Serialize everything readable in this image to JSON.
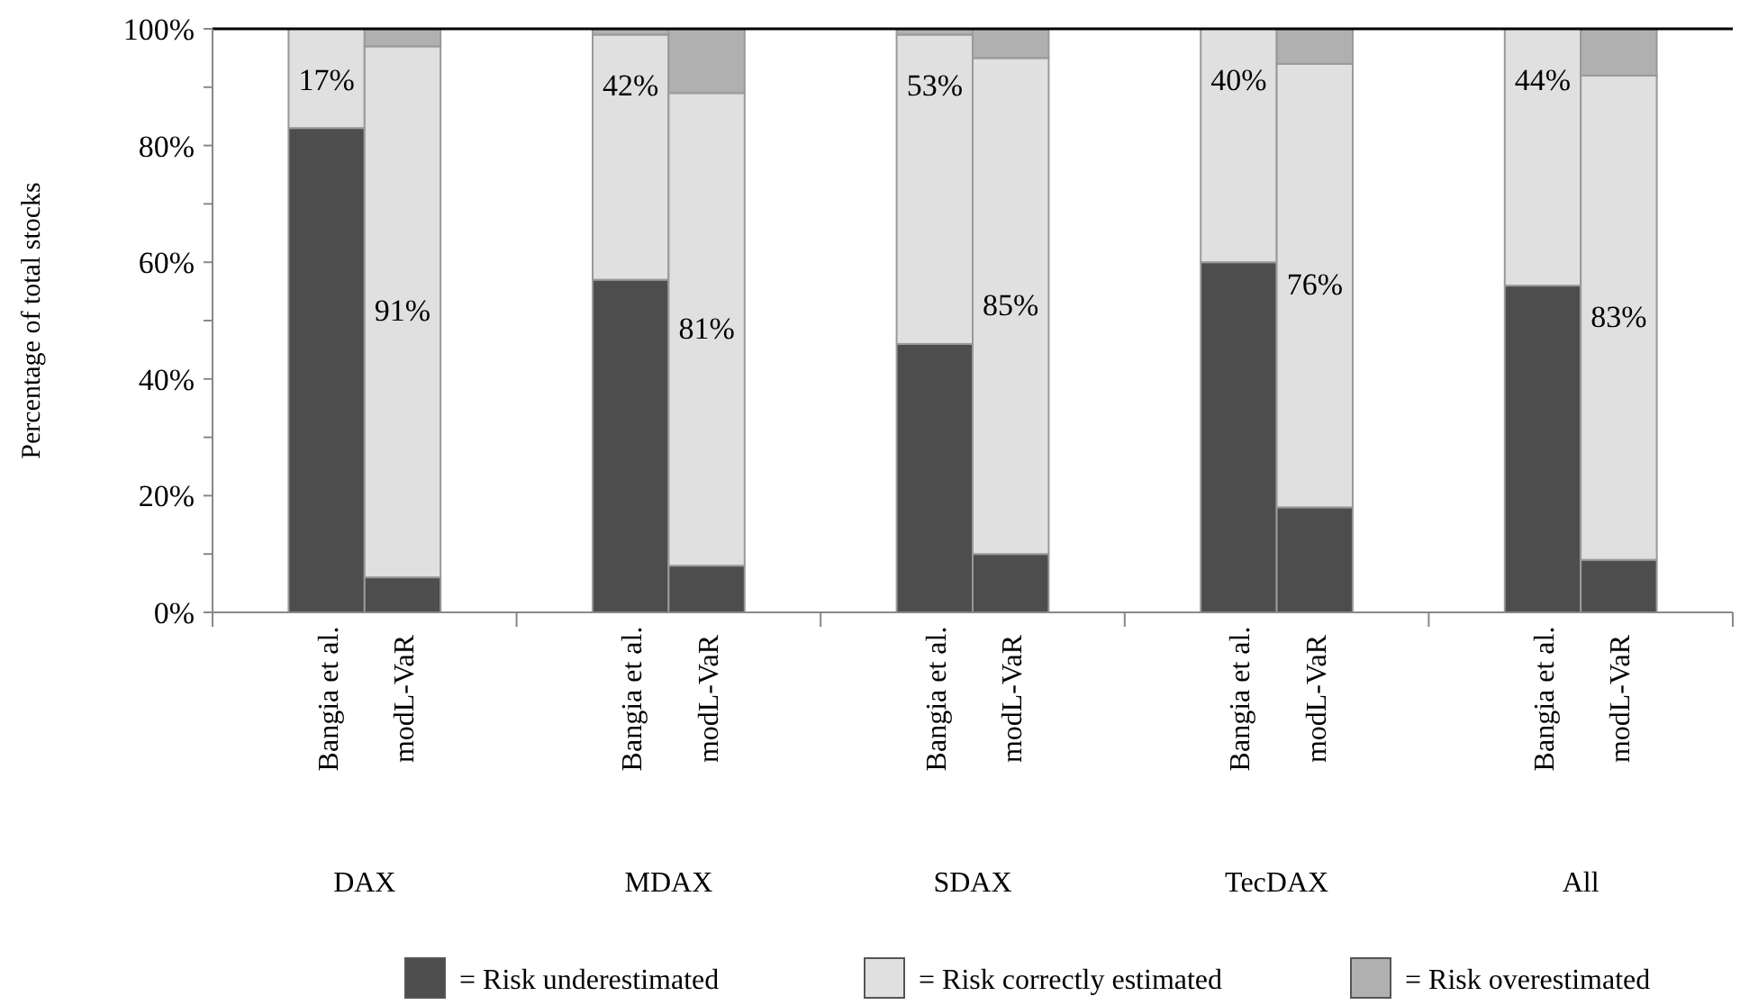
{
  "chart_data": {
    "type": "bar",
    "stacked": true,
    "ylabel": "Percentage of total stocks",
    "categories": [
      "Bangia et al.",
      "modL-VaR",
      "Bangia et al.",
      "modL-VaR",
      "Bangia et al.",
      "modL-VaR",
      "Bangia et al.",
      "modL-VaR",
      "Bangia et al.",
      "modL-VaR"
    ],
    "annotations": [
      "DAX",
      "MDAX",
      "SDAX",
      "TecDAX",
      "All"
    ],
    "series": [
      {
        "name": "= Risk underestimated",
        "color": "#4d4d4d",
        "values": [
          83,
          6,
          57,
          8,
          46,
          10,
          60,
          18,
          56,
          9
        ]
      },
      {
        "name": "= Risk correctly estimated",
        "color": "#e0e0e0",
        "values": [
          17,
          91,
          42,
          81,
          53,
          85,
          40,
          76,
          44,
          83
        ],
        "value_labels": [
          "17%",
          "91%",
          "42%",
          "81%",
          "53%",
          "85%",
          "40%",
          "76%",
          "44%",
          "83%"
        ]
      },
      {
        "name": "= Risk overestimated",
        "color": "#b0b0b0",
        "values": [
          0,
          3,
          1,
          11,
          1,
          5,
          0,
          6,
          0,
          8
        ]
      }
    ],
    "ylim": [
      0,
      100
    ],
    "yticks": [
      {
        "value": 0,
        "label": "0%"
      },
      {
        "value": 10,
        "label": null
      },
      {
        "value": 20,
        "label": "20%"
      },
      {
        "value": 30,
        "label": null
      },
      {
        "value": 40,
        "label": "40%"
      },
      {
        "value": 50,
        "label": null
      },
      {
        "value": 60,
        "label": "60%"
      },
      {
        "value": 70,
        "label": null
      },
      {
        "value": 80,
        "label": "80%"
      },
      {
        "value": 90,
        "label": null
      },
      {
        "value": 100,
        "label": "100%"
      }
    ],
    "grid": false,
    "legend": "bottom"
  }
}
